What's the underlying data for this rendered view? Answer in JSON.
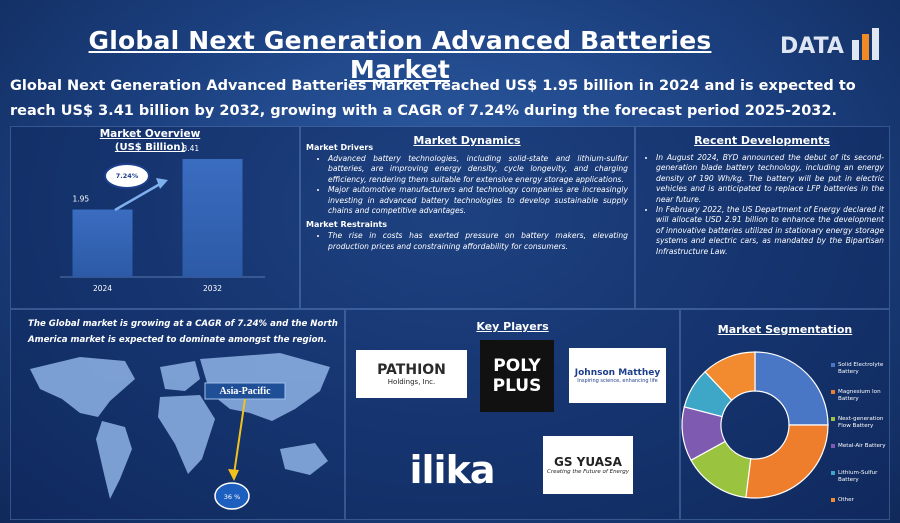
{
  "header": {
    "title": "Global Next Generation Advanced Batteries Market",
    "logo": "DATA",
    "intro": "Global Next Generation Advanced Batteries Market reached US$ 1.95 billion in 2024 and is expected to reach US$ 3.41 billion by 2032, growing with a CAGR of 7.24% during the forecast period 2025-2032."
  },
  "chart_data": [
    {
      "type": "bar",
      "title": "Market Overview",
      "subtitle": "(US$ Billion)",
      "categories": [
        "2024",
        "2032"
      ],
      "values": [
        1.95,
        3.41
      ],
      "color": "#2c5aa6",
      "annotation": "7.24%"
    },
    {
      "type": "pie",
      "title": "Market Segmentation",
      "categories": [
        "Solid Electrolyte Battery",
        "Magnesium Ion Battery",
        "Next-generation Flow Battery",
        "Metal-Air Battery",
        "Lithium-Sulfur Battery",
        "Other"
      ],
      "values": [
        25,
        27,
        15,
        12,
        9,
        12
      ],
      "colors": [
        "#4a76c6",
        "#ee7d2c",
        "#9ac43f",
        "#7e5bb0",
        "#3ea6c6",
        "#f28a30"
      ]
    }
  ],
  "dynamics": {
    "title": "Market Dynamics",
    "drivers_title": "Market Drivers",
    "drivers": [
      "Advanced battery technologies, including solid-state and lithium-sulfur batteries, are improving energy density, cycle longevity, and charging efficiency, rendering them suitable for extensive energy storage applications.",
      "Major automotive manufacturers and technology companies are increasingly investing in advanced battery technologies to develop sustainable supply chains and competitive advantages."
    ],
    "restraints_title": "Market Restraints",
    "restraints": [
      "The rise in costs has exerted pressure on battery makers, elevating production prices and constraining affordability for consumers."
    ]
  },
  "developments": {
    "title": "Recent Developments",
    "items": [
      "In August 2024, BYD announced the debut of its second-generation blade battery technology, including an energy density of 190 Wh/kg. The battery will be put in electric vehicles and is anticipated to replace LFP batteries in the near future.",
      "In February 2022, the US Department of Energy declared it will allocate USD 2.91 billion to enhance the development of innovative batteries utilized in stationary energy storage systems and electric cars, as mandated by the Bipartisan Infrastructure Law."
    ]
  },
  "map": {
    "text": "The Global market is growing at a CAGR of 7.24% and the North America market is expected to dominate amongst the region.",
    "region": "Asia-Pacific",
    "share": "36 %"
  },
  "players": {
    "title": "Key Players",
    "logos": [
      {
        "name": "PATHION",
        "sub": "Holdings, Inc."
      },
      {
        "name": "POLY PLUS"
      },
      {
        "name": "Johnson Matthey",
        "sub": "Inspiring science, enhancing life"
      },
      {
        "name": "ilika"
      },
      {
        "name": "GS YUASA",
        "sub": "Creating the Future of Energy"
      }
    ]
  }
}
